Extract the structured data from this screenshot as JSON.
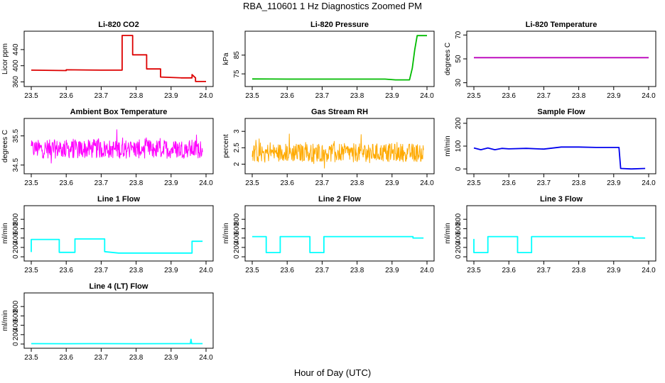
{
  "title": "RBA_110601  1 Hz Diagnostics Zoomed PM",
  "xlabel": "Hour of Day (UTC)",
  "chart_data": [
    {
      "type": "line",
      "title": "Li-820 CO2",
      "ylabel": "Licor ppm",
      "color": "#dd0000",
      "xlim": [
        23.5,
        24.0
      ],
      "ylim": [
        352,
        482
      ],
      "xticks": [
        "23.5",
        "23.6",
        "23.7",
        "23.8",
        "23.9",
        "24.0"
      ],
      "yticks": [
        360,
        400,
        440
      ],
      "series": [
        {
          "x": [
            23.5,
            23.6,
            23.6,
            23.7,
            23.76,
            23.76,
            23.79,
            23.79,
            23.83,
            23.83,
            23.87,
            23.87,
            23.93,
            23.96,
            23.96,
            23.97,
            23.97,
            24.0
          ],
          "y": [
            389,
            388,
            390,
            389,
            389,
            475,
            475,
            427,
            427,
            392,
            392,
            372,
            370,
            370,
            378,
            370,
            361,
            361
          ]
        }
      ]
    },
    {
      "type": "line",
      "title": "Li-820 Pressure",
      "ylabel": "kPa",
      "color": "#00bb00",
      "xlim": [
        23.5,
        24.0
      ],
      "ylim": [
        69,
        97
      ],
      "xticks": [
        "23.5",
        "23.6",
        "23.7",
        "23.8",
        "23.9",
        "24.0"
      ],
      "yticks": [
        75,
        85
      ],
      "series": [
        {
          "x": [
            23.5,
            23.6,
            23.7,
            23.8,
            23.88,
            23.91,
            23.95,
            23.958,
            23.965,
            23.972,
            24.0
          ],
          "y": [
            72.3,
            72.2,
            72.2,
            72.2,
            72.2,
            71.8,
            71.8,
            78,
            88,
            95.4,
            95.4
          ]
        }
      ]
    },
    {
      "type": "line",
      "title": "Li-820 Temperature",
      "ylabel": "degrees C",
      "color": "#bb00bb",
      "xlim": [
        23.5,
        24.0
      ],
      "ylim": [
        28,
        72
      ],
      "xticks": [
        "23.5",
        "23.6",
        "23.7",
        "23.8",
        "23.9",
        "24.0"
      ],
      "yticks": [
        30,
        50,
        70
      ],
      "series": [
        {
          "x": [
            23.5,
            24.0
          ],
          "y": [
            51,
            51
          ]
        }
      ]
    },
    {
      "type": "line",
      "title": "Ambient Box Temperature",
      "ylabel": "degrees C",
      "color": "#ff00ff",
      "xlim": [
        23.5,
        24.0
      ],
      "ylim": [
        34.25,
        36.05
      ],
      "xticks": [
        "23.5",
        "23.6",
        "23.7",
        "23.8",
        "23.9",
        "24.0"
      ],
      "yticks": [
        34.5,
        35.5
      ],
      "series": [
        {
          "noise": true,
          "x_start": 23.5,
          "x_end": 23.99,
          "center": 35.05,
          "spread": 0.32,
          "peak": 0.9,
          "samples": 420
        }
      ]
    },
    {
      "type": "line",
      "title": "Gas Stream RH",
      "ylabel": "percent",
      "color": "#ffaa00",
      "xlim": [
        23.5,
        24.0
      ],
      "ylim": [
        1.75,
        3.35
      ],
      "xticks": [
        "23.5",
        "23.6",
        "23.7",
        "23.8",
        "23.9",
        "24.0"
      ],
      "yticks": [
        2.0,
        2.5,
        3.0
      ],
      "series": [
        {
          "noise": true,
          "x_start": 23.5,
          "x_end": 23.99,
          "center": 2.35,
          "spread": 0.28,
          "peak": 0.9,
          "samples": 420
        }
      ]
    },
    {
      "type": "line",
      "title": "Sample Flow",
      "ylabel": "ml/min",
      "color": "#0000ee",
      "xlim": [
        23.5,
        24.0
      ],
      "ylim": [
        -15,
        215
      ],
      "xticks": [
        "23.5",
        "23.6",
        "23.7",
        "23.8",
        "23.9",
        "24.0"
      ],
      "yticks": [
        0,
        100,
        200
      ],
      "series": [
        {
          "x": [
            23.5,
            23.52,
            23.54,
            23.56,
            23.58,
            23.6,
            23.65,
            23.7,
            23.75,
            23.8,
            23.85,
            23.9,
            23.915,
            23.92,
            23.95,
            23.99
          ],
          "y": [
            92,
            84,
            92,
            84,
            90,
            88,
            90,
            87,
            96,
            96,
            94,
            94,
            94,
            2,
            0,
            2
          ]
        }
      ]
    },
    {
      "type": "line",
      "title": "Line 1 Flow",
      "ylabel": "ml/min",
      "color": "#00ffff",
      "xlim": [
        23.5,
        24.0
      ],
      "ylim": [
        -60,
        1060
      ],
      "xticks": [
        "23.5",
        "23.6",
        "23.7",
        "23.8",
        "23.9",
        "24.0"
      ],
      "yticks": [
        0,
        200,
        400,
        600,
        800
      ],
      "series": [
        {
          "x": [
            23.5,
            23.5,
            23.58,
            23.58,
            23.625,
            23.625,
            23.71,
            23.71,
            23.75,
            23.96,
            23.96,
            23.99
          ],
          "y": [
            100,
            370,
            370,
            95,
            95,
            380,
            380,
            110,
            80,
            80,
            330,
            330
          ]
        }
      ]
    },
    {
      "type": "line",
      "title": "Line 2 Flow",
      "ylabel": "ml/min",
      "color": "#00ffff",
      "xlim": [
        23.5,
        24.0
      ],
      "ylim": [
        -60,
        1060
      ],
      "xticks": [
        "23.5",
        "23.6",
        "23.7",
        "23.8",
        "23.9",
        "24.0"
      ],
      "yticks": [
        0,
        200,
        400,
        600,
        800
      ],
      "series": [
        {
          "x": [
            23.5,
            23.54,
            23.54,
            23.58,
            23.58,
            23.665,
            23.665,
            23.705,
            23.705,
            23.96,
            23.96,
            23.99
          ],
          "y": [
            430,
            430,
            90,
            90,
            430,
            430,
            90,
            90,
            430,
            430,
            400,
            400
          ]
        }
      ]
    },
    {
      "type": "line",
      "title": "Line 3 Flow",
      "ylabel": "ml/min",
      "color": "#00ffff",
      "xlim": [
        23.5,
        24.0
      ],
      "ylim": [
        -60,
        1060
      ],
      "xticks": [
        "23.5",
        "23.6",
        "23.7",
        "23.8",
        "23.9",
        "24.0"
      ],
      "yticks": [
        0,
        200,
        400,
        600,
        800
      ],
      "series": [
        {
          "x": [
            23.5,
            23.5,
            23.54,
            23.54,
            23.625,
            23.625,
            23.665,
            23.665,
            23.955,
            23.955,
            23.99
          ],
          "y": [
            380,
            90,
            90,
            430,
            430,
            90,
            90,
            430,
            430,
            400,
            400
          ]
        }
      ]
    },
    {
      "type": "line",
      "title": "Line 4 (LT) Flow",
      "ylabel": "ml/min",
      "color": "#00ffff",
      "xlim": [
        23.5,
        24.0
      ],
      "ylim": [
        -60,
        1060
      ],
      "xticks": [
        "23.5",
        "23.6",
        "23.7",
        "23.8",
        "23.9",
        "24.0"
      ],
      "yticks": [
        0,
        200,
        400,
        600,
        800
      ],
      "series": [
        {
          "x": [
            23.5,
            23.6,
            23.7,
            23.8,
            23.9,
            23.955,
            23.957,
            23.959,
            23.961,
            23.99
          ],
          "y": [
            8,
            6,
            8,
            6,
            8,
            8,
            100,
            8,
            8,
            8
          ]
        }
      ]
    }
  ]
}
